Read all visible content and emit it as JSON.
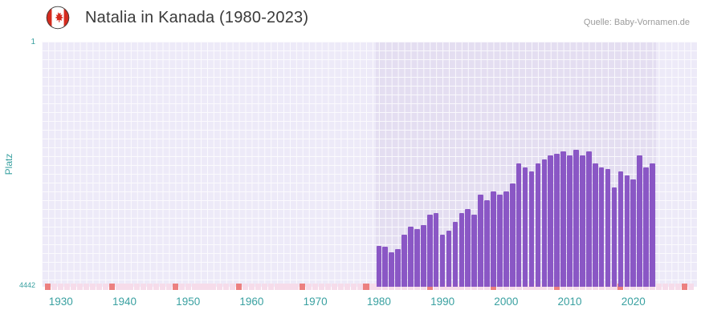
{
  "header": {
    "title": "Natalia in Kanada (1980-2023)",
    "source": "Quelle: Baby-Vornamen.de",
    "flag_icon": "canada-flag"
  },
  "axes": {
    "y_label": "Platz",
    "y_top_tick": "1",
    "y_bottom_tick": "4442",
    "x_ticks": [
      "1930",
      "1940",
      "1950",
      "1960",
      "1970",
      "1980",
      "1990",
      "2000",
      "2010",
      "2020"
    ]
  },
  "colors": {
    "bar": "#8a57c5",
    "plot_bg": "#edeaf8",
    "band_bg": "#e4def1",
    "grid_line": "#ffffff",
    "marker_light": "#f6dcea",
    "marker_accent": "#ec8080",
    "axis_teal": "#3aa1a1",
    "title_text": "#3a3a3a",
    "source_text": "#9b9b9b",
    "flag_red": "#d52b1e"
  },
  "chart_data": {
    "type": "bar",
    "title": "Natalia in Kanada (1980-2023)",
    "xlabel": "",
    "ylabel": "Platz",
    "ylim": [
      4442,
      1
    ],
    "y_axis_inverted": true,
    "x_domain": [
      1927,
      2030
    ],
    "band_years": [
      1979.5,
      2023.5
    ],
    "marker_accent_years": [
      1928,
      1938,
      1948,
      1958,
      1968,
      1978,
      1988,
      1998,
      2008,
      2018,
      2028
    ],
    "years": [
      1980,
      1981,
      1982,
      1983,
      1984,
      1985,
      1986,
      1987,
      1988,
      1989,
      1990,
      1991,
      1992,
      1993,
      1994,
      1995,
      1996,
      1997,
      1998,
      1999,
      2000,
      2001,
      2002,
      2003,
      2004,
      2005,
      2006,
      2007,
      2008,
      2009,
      2010,
      2011,
      2012,
      2013,
      2014,
      2015,
      2016,
      2017,
      2018,
      2019,
      2020,
      2021,
      2022,
      2023
    ],
    "ranks": [
      3700,
      3720,
      3820,
      3760,
      3500,
      3360,
      3390,
      3330,
      3140,
      3110,
      3500,
      3430,
      3260,
      3100,
      3030,
      3140,
      2780,
      2880,
      2710,
      2780,
      2710,
      2570,
      2210,
      2280,
      2350,
      2210,
      2130,
      2060,
      2030,
      1990,
      2060,
      1960,
      2060,
      1990,
      2210,
      2280,
      2310,
      2640,
      2350,
      2420,
      2500,
      2060,
      2280,
      2210
    ],
    "legend": null,
    "grid": true
  }
}
